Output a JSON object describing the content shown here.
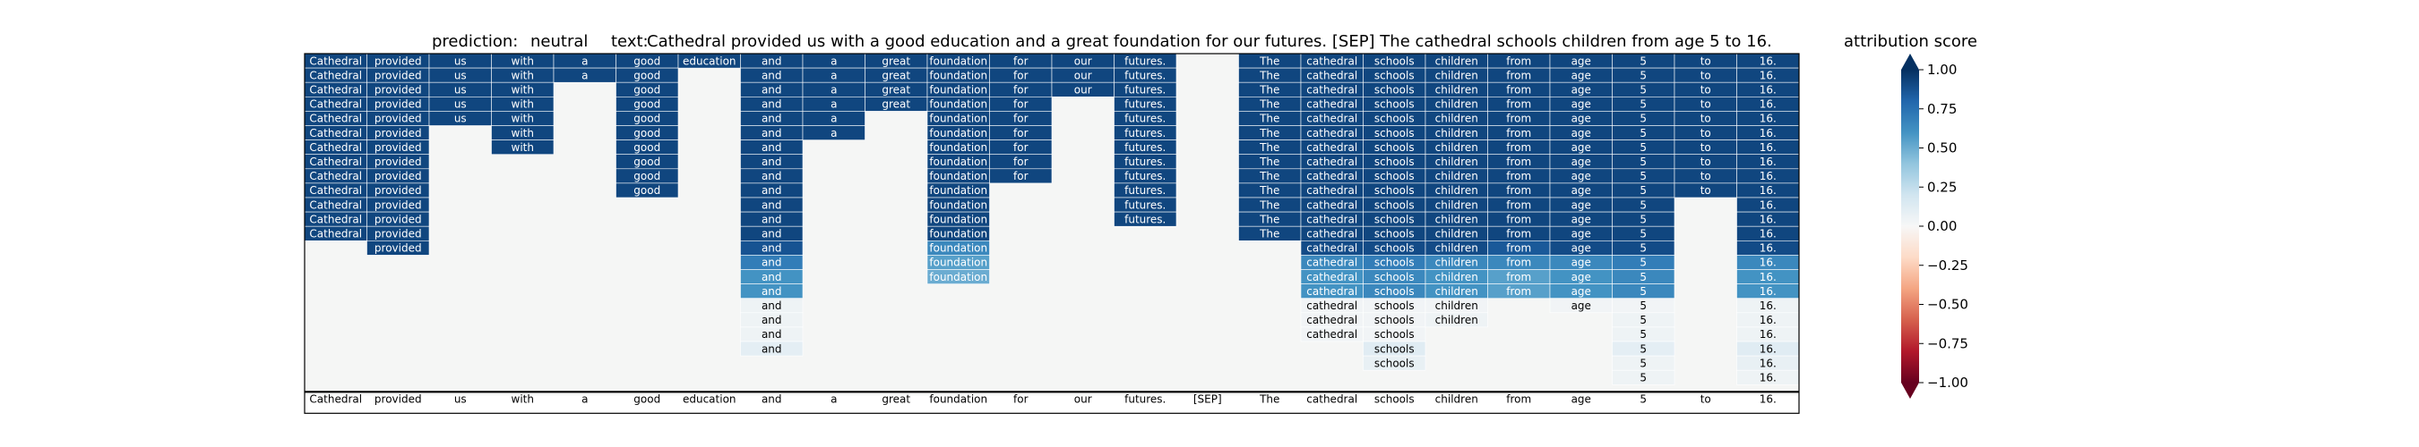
{
  "chart_data": {
    "type": "heatmap",
    "title": {
      "prediction_label": "prediction:",
      "prediction": "neutral",
      "text_label": "text:",
      "text": "Cathedral provided us with a good education and a great foundation for our futures. [SEP] The cathedral schools children from age 5 to 16."
    },
    "tokens": [
      "Cathedral",
      "provided",
      "us",
      "with",
      "a",
      "good",
      "education",
      "and",
      "a",
      "great",
      "foundation",
      "for",
      "our",
      "futures.",
      "[SEP]",
      "The",
      "cathedral",
      "schools",
      "children",
      "from",
      "age",
      "5",
      "to",
      "16."
    ],
    "row_count": 23,
    "columns": [
      {
        "token": "Cathedral",
        "values": [
          0.92,
          0.92,
          0.92,
          0.92,
          0.92,
          0.92,
          0.92,
          0.92,
          0.92,
          0.92,
          0.92,
          0.92,
          0.92,
          null,
          null,
          null,
          null,
          null,
          null,
          null,
          null,
          null,
          null
        ]
      },
      {
        "token": "provided",
        "values": [
          0.92,
          0.92,
          0.92,
          0.92,
          0.92,
          0.92,
          0.92,
          0.92,
          0.92,
          0.92,
          0.92,
          0.92,
          0.92,
          0.92,
          null,
          null,
          null,
          null,
          null,
          null,
          null,
          null,
          null
        ]
      },
      {
        "token": "us",
        "values": [
          0.92,
          0.92,
          0.92,
          0.92,
          0.92,
          null,
          null,
          null,
          null,
          null,
          null,
          null,
          null,
          null,
          null,
          null,
          null,
          null,
          null,
          null,
          null,
          null,
          null
        ]
      },
      {
        "token": "with",
        "values": [
          0.92,
          0.92,
          0.92,
          0.92,
          0.92,
          0.92,
          0.92,
          null,
          null,
          null,
          null,
          null,
          null,
          null,
          null,
          null,
          null,
          null,
          null,
          null,
          null,
          null,
          null
        ]
      },
      {
        "token": "a",
        "values": [
          0.92,
          0.92,
          null,
          null,
          null,
          null,
          null,
          null,
          null,
          null,
          null,
          null,
          null,
          null,
          null,
          null,
          null,
          null,
          null,
          null,
          null,
          null,
          null
        ]
      },
      {
        "token": "good",
        "values": [
          0.92,
          0.92,
          0.92,
          0.92,
          0.92,
          0.92,
          0.92,
          0.92,
          0.92,
          0.92,
          null,
          null,
          null,
          null,
          null,
          null,
          null,
          null,
          null,
          null,
          null,
          null,
          null
        ]
      },
      {
        "token": "education",
        "values": [
          0.92,
          null,
          null,
          null,
          null,
          null,
          null,
          null,
          null,
          null,
          null,
          null,
          null,
          null,
          null,
          null,
          null,
          null,
          null,
          null,
          null,
          null,
          null
        ]
      },
      {
        "token": "and",
        "values": [
          0.92,
          0.92,
          0.92,
          0.92,
          0.92,
          0.92,
          0.92,
          0.92,
          0.92,
          0.92,
          0.92,
          0.92,
          0.92,
          0.87,
          0.7,
          0.6,
          0.6,
          0.05,
          0.05,
          0.05,
          0.1,
          null,
          null
        ]
      },
      {
        "token": "a",
        "values": [
          0.92,
          0.92,
          0.92,
          0.92,
          0.92,
          0.92,
          null,
          null,
          null,
          null,
          null,
          null,
          null,
          null,
          null,
          null,
          null,
          null,
          null,
          null,
          null,
          null,
          null
        ]
      },
      {
        "token": "great",
        "values": [
          0.92,
          0.92,
          0.92,
          0.92,
          null,
          null,
          null,
          null,
          null,
          null,
          null,
          null,
          null,
          null,
          null,
          null,
          null,
          null,
          null,
          null,
          null,
          null,
          null
        ]
      },
      {
        "token": "foundation",
        "values": [
          0.92,
          0.92,
          0.92,
          0.92,
          0.92,
          0.92,
          0.92,
          0.92,
          0.92,
          0.92,
          0.92,
          0.92,
          0.92,
          0.65,
          0.55,
          0.5,
          null,
          null,
          null,
          null,
          null,
          null,
          null
        ]
      },
      {
        "token": "for",
        "values": [
          0.92,
          0.92,
          0.92,
          0.92,
          0.92,
          0.92,
          0.92,
          0.92,
          0.92,
          null,
          null,
          null,
          null,
          null,
          null,
          null,
          null,
          null,
          null,
          null,
          null,
          null,
          null
        ]
      },
      {
        "token": "our",
        "values": [
          0.92,
          0.92,
          0.92,
          null,
          null,
          null,
          null,
          null,
          null,
          null,
          null,
          null,
          null,
          null,
          null,
          null,
          null,
          null,
          null,
          null,
          null,
          null,
          null
        ]
      },
      {
        "token": "futures.",
        "values": [
          0.92,
          0.92,
          0.92,
          0.92,
          0.92,
          0.92,
          0.92,
          0.92,
          0.92,
          0.92,
          0.92,
          0.92,
          null,
          null,
          null,
          null,
          null,
          null,
          null,
          null,
          null,
          null,
          null
        ]
      },
      {
        "token": "[SEP]",
        "values": [
          null,
          null,
          null,
          null,
          null,
          null,
          null,
          null,
          null,
          null,
          null,
          null,
          null,
          null,
          null,
          null,
          null,
          null,
          null,
          null,
          null,
          null,
          null
        ]
      },
      {
        "token": "The",
        "values": [
          0.92,
          0.92,
          0.92,
          0.92,
          0.92,
          0.92,
          0.92,
          0.92,
          0.92,
          0.92,
          0.92,
          0.92,
          0.92,
          null,
          null,
          null,
          null,
          null,
          null,
          null,
          null,
          null,
          null
        ]
      },
      {
        "token": "cathedral",
        "values": [
          0.92,
          0.92,
          0.92,
          0.92,
          0.92,
          0.92,
          0.92,
          0.92,
          0.92,
          0.92,
          0.92,
          0.92,
          0.92,
          0.9,
          0.65,
          0.6,
          0.6,
          0.03,
          0.03,
          0.03,
          null,
          null,
          null
        ]
      },
      {
        "token": "schools",
        "values": [
          0.92,
          0.92,
          0.92,
          0.92,
          0.92,
          0.92,
          0.92,
          0.92,
          0.92,
          0.92,
          0.92,
          0.92,
          0.92,
          0.9,
          0.7,
          0.65,
          0.65,
          0.03,
          0.03,
          0.03,
          0.12,
          0.08,
          null
        ]
      },
      {
        "token": "children",
        "values": [
          0.92,
          0.92,
          0.92,
          0.92,
          0.92,
          0.92,
          0.92,
          0.92,
          0.92,
          0.92,
          0.92,
          0.92,
          0.92,
          0.9,
          0.65,
          0.6,
          0.6,
          0.03,
          0.05,
          null,
          null,
          null,
          null
        ]
      },
      {
        "token": "from",
        "values": [
          0.92,
          0.92,
          0.92,
          0.92,
          0.92,
          0.92,
          0.92,
          0.92,
          0.92,
          0.92,
          0.92,
          0.92,
          0.92,
          0.85,
          0.65,
          0.55,
          0.55,
          null,
          null,
          null,
          null,
          null,
          null
        ]
      },
      {
        "token": "age",
        "values": [
          0.92,
          0.92,
          0.92,
          0.92,
          0.92,
          0.92,
          0.92,
          0.92,
          0.92,
          0.92,
          0.92,
          0.92,
          0.92,
          0.9,
          0.65,
          0.6,
          0.6,
          0.03,
          null,
          null,
          null,
          null,
          null
        ]
      },
      {
        "token": "5",
        "values": [
          0.92,
          0.92,
          0.92,
          0.92,
          0.92,
          0.92,
          0.92,
          0.92,
          0.92,
          0.92,
          0.92,
          0.92,
          0.92,
          0.9,
          0.7,
          0.65,
          0.65,
          0.03,
          0.05,
          0.05,
          0.1,
          0.05,
          0.05
        ]
      },
      {
        "token": "to",
        "values": [
          0.92,
          0.92,
          0.92,
          0.92,
          0.92,
          0.92,
          0.92,
          0.92,
          0.92,
          0.92,
          null,
          null,
          null,
          null,
          null,
          null,
          null,
          null,
          null,
          null,
          null,
          null,
          null
        ]
      },
      {
        "token": "16.",
        "values": [
          0.92,
          0.92,
          0.92,
          0.92,
          0.92,
          0.92,
          0.92,
          0.92,
          0.92,
          0.92,
          0.92,
          0.92,
          0.92,
          0.9,
          0.65,
          0.6,
          0.6,
          0.05,
          0.05,
          0.05,
          0.12,
          0.08,
          0.05
        ]
      }
    ],
    "colorbar": {
      "label": "attribution score",
      "range": [
        -1.0,
        1.0
      ],
      "ticks": [
        "1.00",
        "0.75",
        "0.50",
        "0.25",
        "0.00",
        "−0.25",
        "−0.50",
        "−0.75",
        "−1.00"
      ],
      "colormap": "RdBu",
      "extend": "both"
    },
    "colors": {
      "empty_background": "#f5f6f5",
      "grid_line": "#ffffff",
      "frame": "#000000"
    }
  }
}
